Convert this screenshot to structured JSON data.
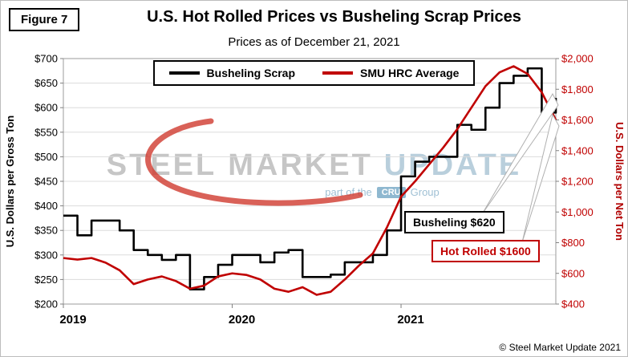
{
  "figure_label": "Figure 7",
  "title": "U.S. Hot Rolled Prices vs Busheling Scrap Prices",
  "subtitle": "Prices as of December 21, 2021",
  "footer": "© Steel Market Update 2021",
  "watermark": {
    "steel": "STEEL",
    "market": "MARKET",
    "update": "UPDATE",
    "part_of": "part of the",
    "cru": "CRU",
    "group": "Group"
  },
  "annotations": {
    "busheling": "Busheling $620",
    "hot_rolled": "Hot Rolled $1600"
  },
  "colors": {
    "busheling_line": "#000000",
    "hrc_line": "#c00000",
    "right_axis_text": "#c00000",
    "gridline": "#dcdcdc",
    "swoosh_red": "#cf3a2e"
  },
  "chart_data": {
    "type": "line",
    "title": "U.S. Hot Rolled Prices vs Busheling Scrap Prices",
    "subtitle": "Prices as of December 21, 2021",
    "grid": true,
    "legend_position": "top-center",
    "x_tick_labels": [
      "2019",
      "2020",
      "2021"
    ],
    "x_tick_month_indices": [
      0,
      12,
      24
    ],
    "months": [
      "Jan 2019",
      "Feb 2019",
      "Mar 2019",
      "Apr 2019",
      "May 2019",
      "Jun 2019",
      "Jul 2019",
      "Aug 2019",
      "Sep 2019",
      "Oct 2019",
      "Nov 2019",
      "Dec 2019",
      "Jan 2020",
      "Feb 2020",
      "Mar 2020",
      "Apr 2020",
      "May 2020",
      "Jun 2020",
      "Jul 2020",
      "Aug 2020",
      "Sep 2020",
      "Oct 2020",
      "Nov 2020",
      "Dec 2020",
      "Jan 2021",
      "Feb 2021",
      "Mar 2021",
      "Apr 2021",
      "May 2021",
      "Jun 2021",
      "Jul 2021",
      "Aug 2021",
      "Sep 2021",
      "Oct 2021",
      "Nov 2021",
      "Dec 2021"
    ],
    "left_axis": {
      "label": "U.S. Dollars per Gross Ton",
      "min": 200,
      "max": 700,
      "step": 50,
      "tick_labels": [
        "$700",
        "$650",
        "$600",
        "$550",
        "$500",
        "$450",
        "$400",
        "$350",
        "$300",
        "$250",
        "$200"
      ]
    },
    "right_axis": {
      "label": "U.S. Dollars per Net Ton",
      "min": 400,
      "max": 2000,
      "step": 200,
      "color": "#c00000",
      "tick_labels": [
        "$2,000",
        "$1,800",
        "$1,600",
        "$1,400",
        "$1,200",
        "$1,000",
        "$800",
        "$600",
        "$400"
      ]
    },
    "series": [
      {
        "name": "Busheling Scrap",
        "axis": "left",
        "color": "#000000",
        "style": "step",
        "values": [
          380,
          340,
          370,
          370,
          350,
          310,
          300,
          290,
          300,
          230,
          255,
          280,
          300,
          300,
          285,
          305,
          310,
          255,
          255,
          260,
          285,
          285,
          300,
          350,
          460,
          490,
          500,
          500,
          565,
          555,
          600,
          650,
          665,
          680,
          590,
          620
        ]
      },
      {
        "name": "SMU HRC Average",
        "axis": "right",
        "color": "#c00000",
        "style": "line",
        "values": [
          700,
          690,
          700,
          670,
          620,
          530,
          560,
          580,
          550,
          500,
          520,
          580,
          600,
          590,
          560,
          500,
          480,
          510,
          460,
          480,
          560,
          650,
          730,
          900,
          1100,
          1200,
          1310,
          1420,
          1540,
          1680,
          1820,
          1910,
          1950,
          1900,
          1780,
          1600
        ]
      }
    ],
    "final_values": {
      "busheling": 620,
      "hot_rolled": 1600
    }
  }
}
